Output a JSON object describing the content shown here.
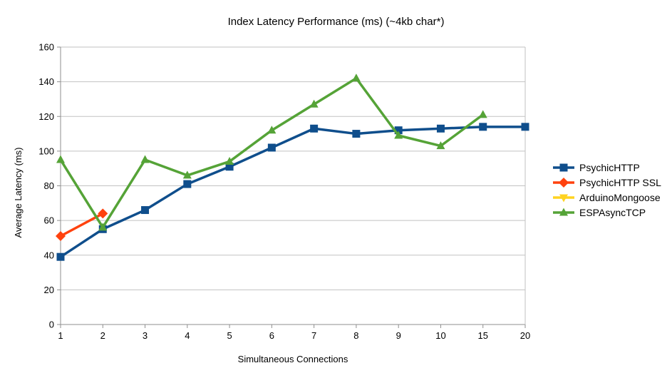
{
  "chart_data": {
    "type": "line",
    "title": "Index Latency Performance (ms) (~4kb char*)",
    "xlabel": "Simultaneous Connections",
    "ylabel": "Average Latency (ms)",
    "categories": [
      "1",
      "2",
      "3",
      "4",
      "5",
      "6",
      "7",
      "8",
      "9",
      "10",
      "15",
      "20"
    ],
    "ylim": [
      0,
      160
    ],
    "yticks": [
      0,
      20,
      40,
      60,
      80,
      100,
      120,
      140,
      160
    ],
    "grid": "horizontal",
    "legend_position": "right",
    "background_color": "#ffffff",
    "gridline_color": "#c2c2c2",
    "axis_color": "#8f8f8f",
    "text_color": "#000000",
    "series": [
      {
        "name": "PsychicHTTP",
        "color": "#0f4e8c",
        "marker": "square",
        "values": [
          39,
          55,
          66,
          81,
          91,
          102,
          113,
          110,
          112,
          113,
          114,
          114
        ]
      },
      {
        "name": "PsychicHTTP SSL",
        "color": "#ff420e",
        "marker": "diamond",
        "values": [
          51,
          64,
          null,
          null,
          null,
          null,
          null,
          null,
          null,
          null,
          null,
          null
        ]
      },
      {
        "name": "ArduinoMongoose",
        "color": "#ffd320",
        "marker": "triangle-down",
        "values": [
          null,
          null,
          null,
          null,
          null,
          null,
          null,
          null,
          null,
          null,
          null,
          null
        ]
      },
      {
        "name": "ESPAsyncTCP",
        "color": "#55a337",
        "marker": "triangle-up",
        "values": [
          95,
          56,
          95,
          86,
          94,
          112,
          127,
          142,
          109,
          103,
          121,
          null
        ]
      }
    ]
  }
}
